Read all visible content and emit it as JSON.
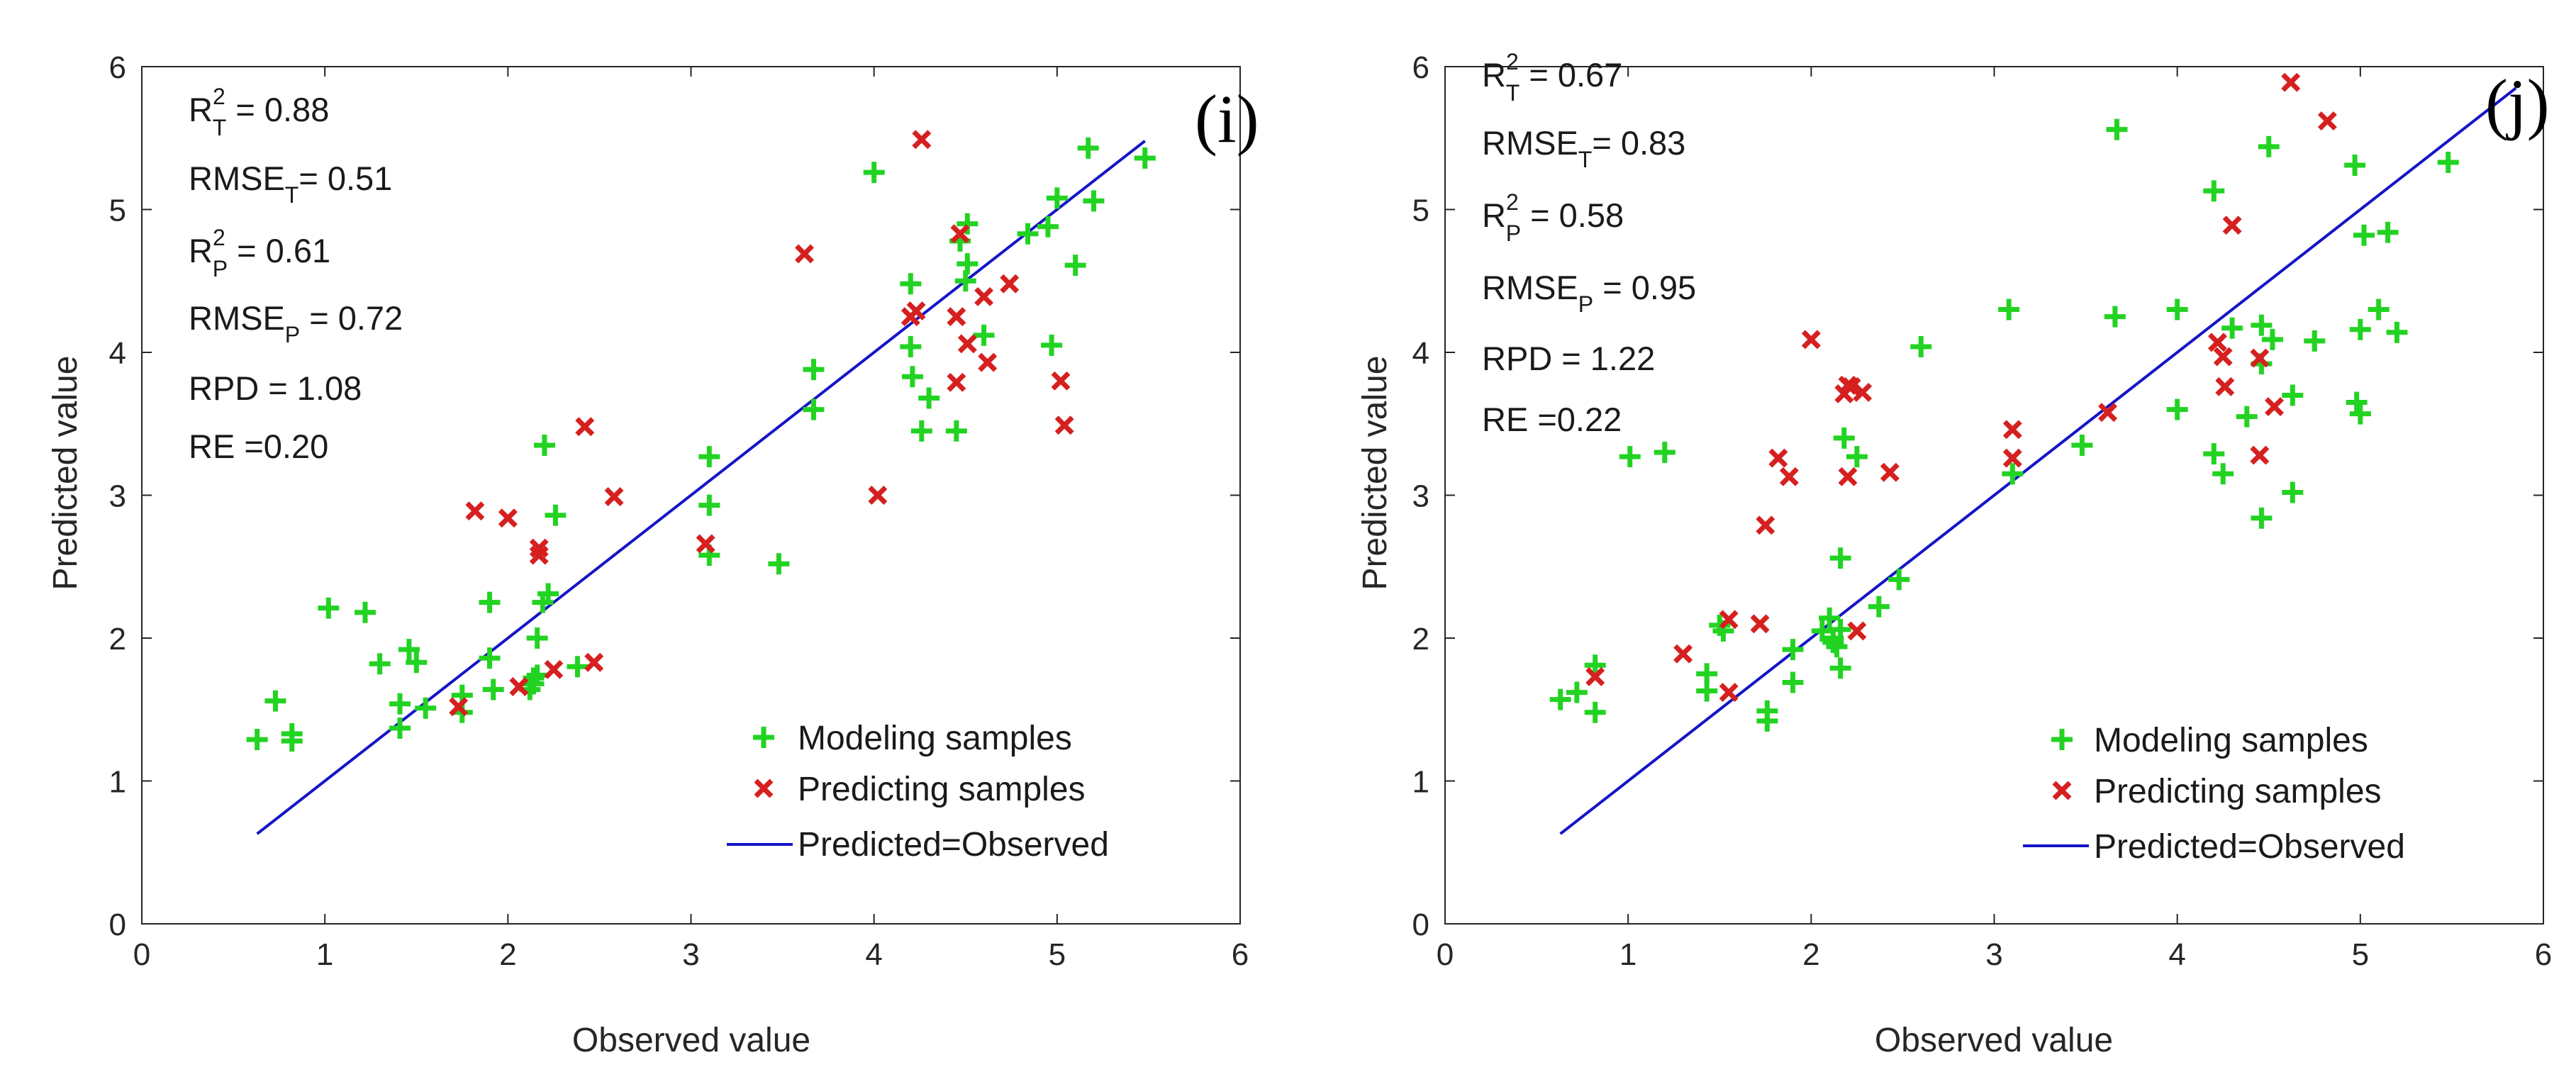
{
  "figure": {
    "colors": {
      "modeling": "#22d322",
      "predicting": "#d62020",
      "line": "#1414c8",
      "axis": "#262626"
    }
  },
  "chart_data": [
    {
      "type": "scatter",
      "panel_label": "(i)",
      "xlabel": "Observed value",
      "ylabel": "Predicted value",
      "xlim": [
        0,
        6
      ],
      "ylim": [
        0,
        6
      ],
      "xticks": [
        "0",
        "1",
        "2",
        "3",
        "4",
        "5",
        "6"
      ],
      "yticks": [
        "0",
        "1",
        "2",
        "3",
        "4",
        "5",
        "6"
      ],
      "stats": [
        {
          "main": "R",
          "sup": "2",
          "sub": "T",
          "rest": " = 0.88"
        },
        {
          "main": "RMSE",
          "sub": "T",
          "rest": "= 0.51"
        },
        {
          "main": "R",
          "sup": "2",
          "sub": "P",
          "rest": " = 0.61"
        },
        {
          "main": "RMSE",
          "sub": "P",
          "rest": " = 0.72"
        },
        {
          "main": "RPD = 1.08"
        },
        {
          "main": "RE =0.20"
        }
      ],
      "legend": [
        "Modeling samples",
        "Predicting samples",
        "Predicted=Observed"
      ],
      "line": {
        "x": [
          0.63,
          5.48
        ],
        "y": [
          0.63,
          5.48
        ]
      },
      "series": [
        {
          "name": "Modeling samples",
          "marker": "+",
          "points": [
            [
              0.63,
              1.29
            ],
            [
              0.73,
              1.56
            ],
            [
              0.82,
              1.33
            ],
            [
              0.82,
              1.28
            ],
            [
              1.02,
              2.21
            ],
            [
              1.22,
              2.18
            ],
            [
              1.3,
              1.82
            ],
            [
              1.41,
              1.37
            ],
            [
              1.41,
              1.54
            ],
            [
              1.46,
              1.92
            ],
            [
              1.5,
              1.83
            ],
            [
              1.55,
              1.51
            ],
            [
              1.75,
              1.6
            ],
            [
              1.75,
              1.48
            ],
            [
              1.9,
              2.25
            ],
            [
              1.9,
              1.86
            ],
            [
              1.92,
              1.64
            ],
            [
              2.12,
              1.64
            ],
            [
              2.14,
              1.68
            ],
            [
              2.14,
              1.72
            ],
            [
              2.16,
              1.74
            ],
            [
              2.16,
              2.0
            ],
            [
              2.19,
              2.25
            ],
            [
              2.2,
              3.35
            ],
            [
              2.22,
              2.31
            ],
            [
              2.26,
              2.86
            ],
            [
              2.38,
              1.8
            ],
            [
              3.1,
              3.27
            ],
            [
              3.1,
              2.93
            ],
            [
              3.1,
              2.58
            ],
            [
              3.48,
              2.52
            ],
            [
              3.67,
              3.88
            ],
            [
              3.67,
              3.6
            ],
            [
              4.0,
              5.26
            ],
            [
              4.2,
              4.48
            ],
            [
              4.2,
              4.04
            ],
            [
              4.21,
              3.83
            ],
            [
              4.26,
              3.45
            ],
            [
              4.3,
              3.68
            ],
            [
              4.45,
              3.45
            ],
            [
              4.47,
              4.78
            ],
            [
              4.5,
              4.5
            ],
            [
              4.51,
              4.9
            ],
            [
              4.51,
              4.62
            ],
            [
              4.6,
              4.12
            ],
            [
              4.84,
              4.83
            ],
            [
              4.95,
              4.88
            ],
            [
              4.97,
              4.05
            ],
            [
              5.0,
              5.08
            ],
            [
              5.1,
              4.61
            ],
            [
              5.17,
              5.43
            ],
            [
              5.2,
              5.06
            ],
            [
              5.48,
              5.36
            ]
          ]
        },
        {
          "name": "Predicting samples",
          "marker": "x",
          "points": [
            [
              1.73,
              1.52
            ],
            [
              1.82,
              2.89
            ],
            [
              2.0,
              2.84
            ],
            [
              2.06,
              1.66
            ],
            [
              2.17,
              2.63
            ],
            [
              2.17,
              2.58
            ],
            [
              2.25,
              1.78
            ],
            [
              2.42,
              3.48
            ],
            [
              2.47,
              1.83
            ],
            [
              2.58,
              2.99
            ],
            [
              3.08,
              2.66
            ],
            [
              3.62,
              4.69
            ],
            [
              4.02,
              3.0
            ],
            [
              4.2,
              4.25
            ],
            [
              4.23,
              4.29
            ],
            [
              4.26,
              5.49
            ],
            [
              4.45,
              4.25
            ],
            [
              4.45,
              3.79
            ],
            [
              4.47,
              4.83
            ],
            [
              4.51,
              4.06
            ],
            [
              4.6,
              4.39
            ],
            [
              4.62,
              3.93
            ],
            [
              4.74,
              4.48
            ],
            [
              5.02,
              3.8
            ],
            [
              5.04,
              3.49
            ]
          ]
        }
      ]
    },
    {
      "type": "scatter",
      "panel_label": "(j)",
      "xlabel": "Observed value",
      "ylabel": "Predicted value",
      "xlim": [
        0,
        6
      ],
      "ylim": [
        0,
        6
      ],
      "xticks": [
        "0",
        "1",
        "2",
        "3",
        "4",
        "5",
        "6"
      ],
      "yticks": [
        "0",
        "1",
        "2",
        "3",
        "4",
        "5",
        "6"
      ],
      "stats": [
        {
          "main": "R",
          "sup": "2",
          "sub": "T",
          "rest": " = 0.67"
        },
        {
          "main": "RMSE",
          "sub": "T",
          "rest": "= 0.83"
        },
        {
          "main": "R",
          "sup": "2",
          "sub": "P",
          "rest": " = 0.58"
        },
        {
          "main": "RMSE",
          "sub": "P",
          "rest": " = 0.95"
        },
        {
          "main": "RPD = 1.22"
        },
        {
          "main": "RE =0.22"
        }
      ],
      "legend": [
        "Modeling samples",
        "Predicting samples",
        "Predicted=Observed"
      ],
      "line": {
        "x": [
          0.63,
          5.85
        ],
        "y": [
          0.63,
          5.85
        ]
      },
      "series": [
        {
          "name": "Modeling samples",
          "marker": "+",
          "points": [
            [
              0.63,
              1.57
            ],
            [
              0.72,
              1.62
            ],
            [
              0.82,
              1.48
            ],
            [
              0.82,
              1.81
            ],
            [
              1.01,
              3.27
            ],
            [
              1.2,
              3.3
            ],
            [
              1.43,
              1.63
            ],
            [
              1.43,
              1.75
            ],
            [
              1.5,
              2.09
            ],
            [
              1.52,
              2.05
            ],
            [
              1.76,
              1.42
            ],
            [
              1.76,
              1.49
            ],
            [
              1.9,
              1.92
            ],
            [
              1.9,
              1.69
            ],
            [
              2.06,
              2.05
            ],
            [
              2.1,
              2.14
            ],
            [
              2.12,
              1.97
            ],
            [
              2.12,
              2.0
            ],
            [
              2.14,
              1.94
            ],
            [
              2.16,
              2.06
            ],
            [
              2.16,
              1.79
            ],
            [
              2.16,
              2.56
            ],
            [
              2.18,
              3.4
            ],
            [
              2.25,
              3.27
            ],
            [
              2.37,
              2.22
            ],
            [
              2.48,
              2.41
            ],
            [
              2.6,
              4.04
            ],
            [
              3.08,
              4.3
            ],
            [
              3.1,
              3.15
            ],
            [
              3.48,
              3.35
            ],
            [
              3.66,
              4.25
            ],
            [
              3.67,
              5.56
            ],
            [
              4.0,
              4.3
            ],
            [
              4.0,
              3.6
            ],
            [
              4.2,
              5.13
            ],
            [
              4.2,
              3.29
            ],
            [
              4.25,
              3.15
            ],
            [
              4.3,
              4.17
            ],
            [
              4.38,
              3.55
            ],
            [
              4.46,
              4.19
            ],
            [
              4.46,
              3.92
            ],
            [
              4.46,
              2.84
            ],
            [
              4.5,
              5.44
            ],
            [
              4.52,
              4.09
            ],
            [
              4.63,
              3.02
            ],
            [
              4.63,
              3.7
            ],
            [
              4.75,
              4.08
            ],
            [
              4.97,
              5.31
            ],
            [
              4.98,
              3.65
            ],
            [
              5.0,
              3.57
            ],
            [
              5.0,
              4.16
            ],
            [
              5.02,
              4.82
            ],
            [
              5.1,
              4.3
            ],
            [
              5.15,
              4.84
            ],
            [
              5.2,
              4.14
            ],
            [
              5.48,
              5.33
            ]
          ]
        },
        {
          "name": "Predicting samples",
          "marker": "x",
          "points": [
            [
              0.82,
              1.73
            ],
            [
              1.3,
              1.89
            ],
            [
              1.55,
              2.13
            ],
            [
              1.55,
              1.62
            ],
            [
              1.72,
              2.1
            ],
            [
              1.75,
              2.79
            ],
            [
              1.82,
              3.26
            ],
            [
              1.88,
              3.13
            ],
            [
              2.0,
              4.09
            ],
            [
              2.18,
              3.71
            ],
            [
              2.2,
              3.77
            ],
            [
              2.2,
              3.13
            ],
            [
              2.22,
              3.76
            ],
            [
              2.25,
              2.05
            ],
            [
              2.28,
              3.72
            ],
            [
              2.43,
              3.16
            ],
            [
              3.1,
              3.46
            ],
            [
              3.1,
              3.26
            ],
            [
              3.62,
              3.58
            ],
            [
              4.22,
              4.07
            ],
            [
              4.25,
              3.97
            ],
            [
              4.26,
              3.76
            ],
            [
              4.3,
              4.89
            ],
            [
              4.45,
              3.96
            ],
            [
              4.45,
              3.28
            ],
            [
              4.53,
              3.62
            ],
            [
              4.62,
              5.89
            ],
            [
              4.82,
              5.62
            ]
          ]
        }
      ]
    }
  ]
}
